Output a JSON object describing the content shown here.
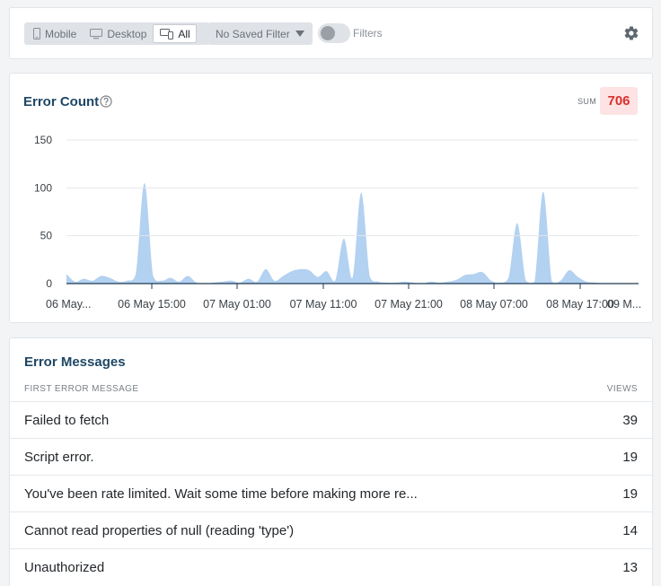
{
  "toolbar": {
    "segments": [
      {
        "label": "Mobile",
        "icon": "mobile-icon"
      },
      {
        "label": "Desktop",
        "icon": "desktop-icon"
      },
      {
        "label": "All",
        "icon": "devices-icon",
        "active": true
      }
    ],
    "saved_filter_label": "No Saved Filter",
    "filters_toggle_label": "Filters",
    "filters_enabled": false,
    "settings_icon": "gear-icon"
  },
  "error_count": {
    "title": "Error Count",
    "help_icon": "question-circle-icon",
    "sum_label": "SUM",
    "sum_value": "706"
  },
  "chart_data": {
    "type": "area",
    "fill_color": "#b3d1f1",
    "ylim": [
      0,
      150
    ],
    "yticks": [
      0,
      50,
      100,
      150
    ],
    "grid": true,
    "xlabels": [
      "06 May...",
      "06 May 15:00",
      "07 May 01:00",
      "07 May 11:00",
      "07 May 21:00",
      "08 May 07:00",
      "08 May 17:00",
      "09 M..."
    ],
    "x_hours": [
      0,
      1,
      2,
      3,
      4,
      5,
      6,
      7,
      8,
      9,
      10,
      11,
      12,
      13,
      14,
      15,
      16,
      17,
      18,
      19,
      20,
      21,
      22,
      23,
      24,
      25,
      26,
      27,
      28,
      29,
      30,
      31,
      32,
      33,
      34,
      35,
      36,
      37,
      38,
      39,
      40,
      41,
      42,
      43,
      44,
      45,
      46,
      47,
      48,
      49,
      50,
      51,
      52,
      53,
      54,
      55,
      56,
      57,
      58,
      59,
      60,
      61,
      62,
      63,
      64,
      65,
      66
    ],
    "values": [
      10,
      2,
      5,
      3,
      8,
      6,
      2,
      3,
      10,
      105,
      8,
      3,
      6,
      2,
      8,
      1,
      0,
      1,
      2,
      3,
      1,
      5,
      2,
      15,
      3,
      8,
      13,
      15,
      14,
      7,
      13,
      3,
      47,
      6,
      95,
      7,
      2,
      1,
      1,
      2,
      1,
      0,
      2,
      1,
      2,
      4,
      9,
      10,
      12,
      3,
      1,
      6,
      63,
      3,
      2,
      96,
      2,
      3,
      14,
      7,
      2,
      1,
      0,
      0,
      0,
      0,
      0
    ]
  },
  "error_messages": {
    "title": "Error Messages",
    "col_message": "FIRST ERROR MESSAGE",
    "col_views": "VIEWS",
    "rows": [
      {
        "message": "Failed to fetch",
        "views": "39"
      },
      {
        "message": "Script error.",
        "views": "19"
      },
      {
        "message": "You've been rate limited. Wait some time before making more re...",
        "views": "19"
      },
      {
        "message": "Cannot read properties of null (reading 'type')",
        "views": "14"
      },
      {
        "message": "Unauthorized",
        "views": "13"
      }
    ]
  }
}
